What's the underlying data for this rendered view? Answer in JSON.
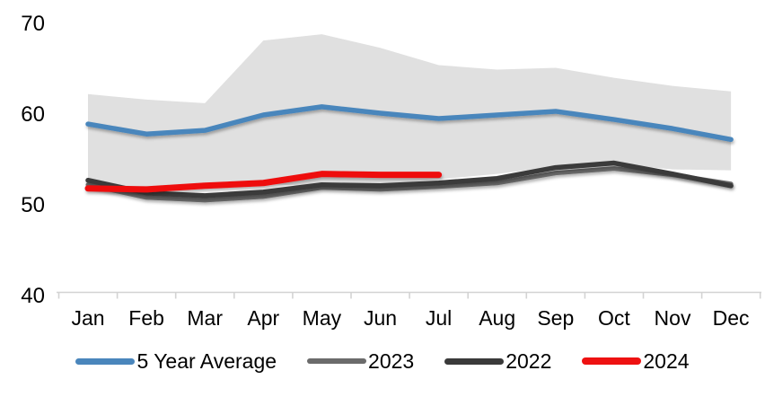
{
  "chart_data": {
    "type": "line",
    "title": "",
    "xlabel": "",
    "ylabel": "",
    "categories": [
      "Jan",
      "Feb",
      "Mar",
      "Apr",
      "May",
      "Jun",
      "Jul",
      "Aug",
      "Sep",
      "Oct",
      "Nov",
      "Dec"
    ],
    "ylim": [
      40,
      70
    ],
    "y_ticks": [
      70,
      60,
      50,
      40
    ],
    "grid": false,
    "legend_position": "bottom",
    "axis_color": "#d3d3d3",
    "band": {
      "name": "5-year-range",
      "color": "#e0e0e0",
      "top": [
        62.3,
        61.7,
        61.3,
        68.2,
        68.9,
        67.4,
        65.5,
        65.0,
        65.2,
        64.1,
        63.2,
        62.6
      ],
      "bottom": [
        52.0,
        51.9,
        52.1,
        52.4,
        52.1,
        52.3,
        52.9,
        53.5,
        54.3,
        54.6,
        54.0,
        53.9
      ]
    },
    "series": [
      {
        "name": "5 Year Average",
        "color": "#4a86bc",
        "width": 5.5,
        "values": [
          59.0,
          57.9,
          58.3,
          60.0,
          60.9,
          60.2,
          59.6,
          60.0,
          60.4,
          59.5,
          58.5,
          57.3
        ]
      },
      {
        "name": "2023",
        "color": "#6b6b6b",
        "width": 5,
        "values": [
          52.3,
          50.9,
          50.6,
          51.0,
          52.0,
          51.8,
          52.1,
          52.5,
          53.6,
          54.1,
          53.4,
          52.4
        ]
      },
      {
        "name": "2022",
        "color": "#3a3a3a",
        "width": 5.5,
        "values": [
          52.8,
          51.4,
          51.1,
          51.5,
          52.3,
          52.2,
          52.5,
          53.0,
          54.2,
          54.7,
          53.5,
          52.2
        ]
      },
      {
        "name": "2024",
        "color": "#ee1111",
        "width": 7,
        "values": [
          51.9,
          51.8,
          52.2,
          52.5,
          53.5,
          53.4,
          53.4
        ]
      }
    ],
    "legend": [
      "5 Year Average",
      "2023",
      "2022",
      "2024"
    ]
  }
}
